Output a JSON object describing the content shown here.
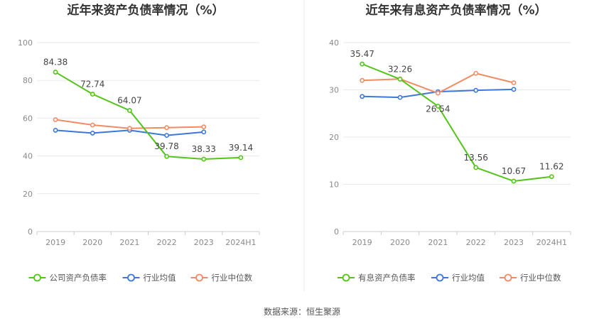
{
  "chart_data": [
    {
      "type": "line",
      "title": "近年来资产负债率情况（%）",
      "categories": [
        "2019",
        "2020",
        "2021",
        "2022",
        "2023",
        "2024H1"
      ],
      "ylim": [
        0,
        100
      ],
      "yticks": [
        0,
        20,
        40,
        60,
        80,
        100
      ],
      "grid": true,
      "legend_position": "bottom",
      "series": [
        {
          "name": "公司资产负债率",
          "color": "#52c41a",
          "values": [
            84.38,
            72.74,
            64.07,
            39.78,
            38.33,
            39.14
          ],
          "labels": [
            "84.38",
            "72.74",
            "64.07",
            "39.78",
            "38.33",
            "39.14"
          ]
        },
        {
          "name": "行业均值",
          "color": "#3d78d8",
          "values": [
            53.6,
            52.1,
            53.6,
            50.9,
            52.7,
            null
          ],
          "labels": []
        },
        {
          "name": "行业中位数",
          "color": "#f08c64",
          "values": [
            59.2,
            56.4,
            54.6,
            55.0,
            55.4,
            null
          ],
          "labels": []
        }
      ]
    },
    {
      "type": "line",
      "title": "近年来有息资产负债率情况（%）",
      "categories": [
        "2019",
        "2020",
        "2021",
        "2022",
        "2023",
        "2024H1"
      ],
      "ylim": [
        0,
        40
      ],
      "yticks": [
        0,
        10,
        20,
        30,
        40
      ],
      "grid": true,
      "legend_position": "bottom",
      "series": [
        {
          "name": "有息资产负债率",
          "color": "#52c41a",
          "values": [
            35.47,
            32.26,
            26.54,
            13.56,
            10.67,
            11.62
          ],
          "labels": [
            "35.47",
            "32.26",
            "26.54",
            "13.56",
            "10.67",
            "11.62"
          ]
        },
        {
          "name": "行业均值",
          "color": "#3d78d8",
          "values": [
            28.6,
            28.4,
            29.6,
            29.9,
            30.1,
            null
          ],
          "labels": []
        },
        {
          "name": "行业中位数",
          "color": "#f08c64",
          "values": [
            32.0,
            32.3,
            29.3,
            33.5,
            31.5,
            null
          ],
          "labels": []
        }
      ]
    }
  ],
  "footer": {
    "source": "数据来源：恒生聚源"
  }
}
